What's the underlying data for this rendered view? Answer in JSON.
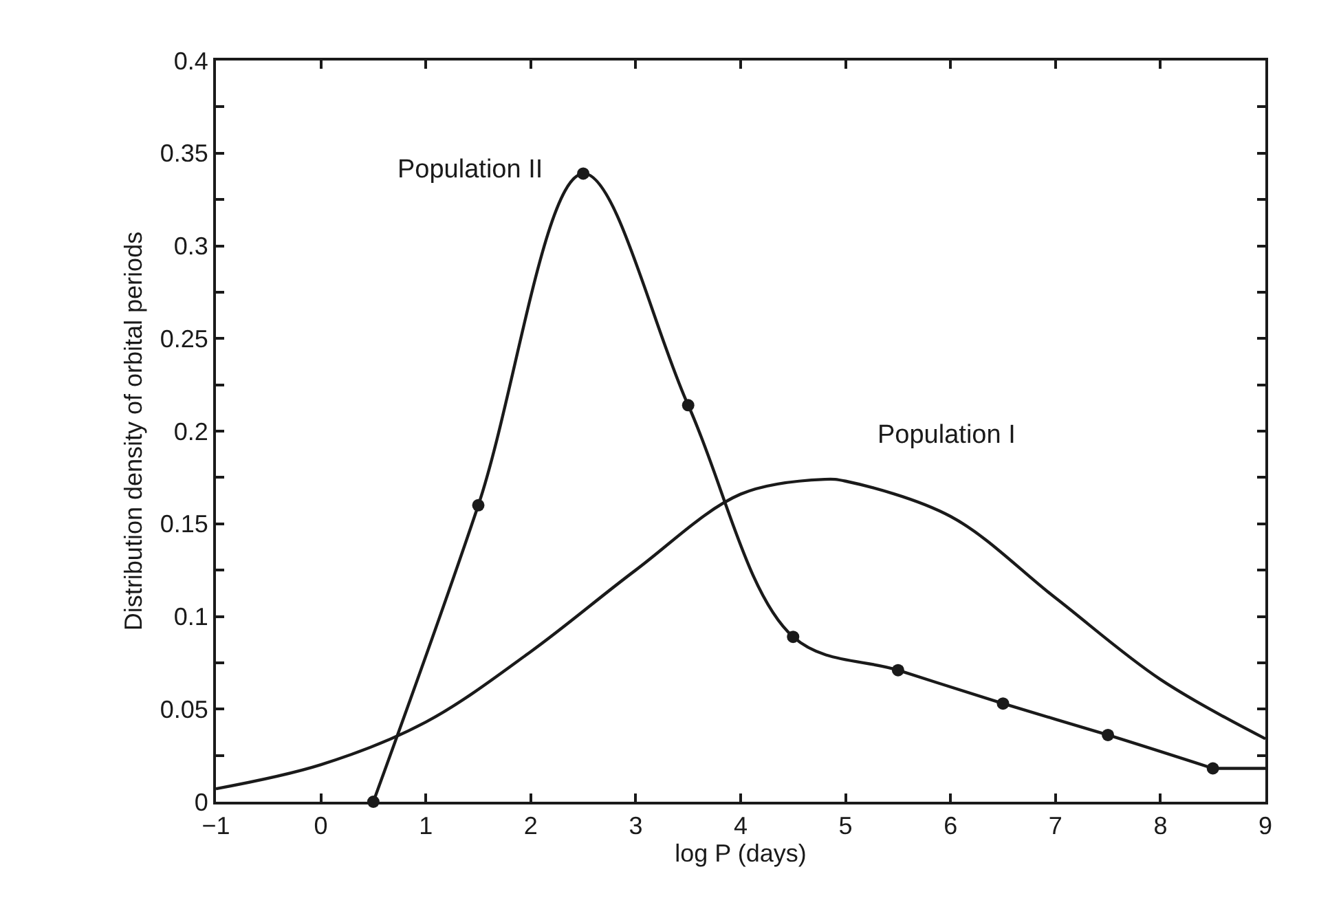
{
  "chart_data": {
    "type": "line",
    "xlabel": "log P (days)",
    "ylabel": "Distribution density of orbital periods",
    "series": [
      {
        "name": "Population II",
        "color": "#1a1a1a",
        "marker": "circle",
        "x": [
          0.5,
          1.5,
          2.5,
          3.5,
          4.5,
          5.5,
          6.5,
          7.5,
          8.5
        ],
        "values": [
          0,
          0.16,
          0.339,
          0.214,
          0.089,
          0.071,
          0.053,
          0.036,
          0.018
        ]
      },
      {
        "color": "#1a1a1a",
        "marker": "none",
        "x": [
          8.5,
          9
        ],
        "values": [
          0.018,
          0.018
        ]
      },
      {
        "name": "Population I",
        "color": "#1a1a1a",
        "marker": "none",
        "x": [
          -1,
          0,
          1,
          2,
          3,
          4,
          4.8,
          5,
          6,
          7,
          8,
          9
        ],
        "values": [
          0.007,
          0.02,
          0.043,
          0.081,
          0.125,
          0.166,
          0.174,
          0.173,
          0.154,
          0.11,
          0.066,
          0.034
        ]
      }
    ],
    "xlim": [
      -1,
      9
    ],
    "xticks": [
      {
        "value": -1,
        "label": "−1"
      },
      0,
      1,
      2,
      3,
      4,
      5,
      6,
      7,
      8,
      9
    ],
    "ylim": [
      0,
      0.4
    ],
    "yticks": [
      0,
      {
        "value": 0.025,
        "label": null
      },
      0.05,
      {
        "value": 0.075,
        "label": null
      },
      0.1,
      {
        "value": 0.125,
        "label": null
      },
      0.15,
      {
        "value": 0.175,
        "label": null
      },
      0.2,
      {
        "value": 0.225,
        "label": null
      },
      0.25,
      {
        "value": 0.275,
        "label": null
      },
      0.3,
      {
        "value": 0.325,
        "label": null
      },
      0.35,
      {
        "value": 0.375,
        "label": null
      },
      0.4
    ],
    "legend": false,
    "line_style": "solid"
  }
}
